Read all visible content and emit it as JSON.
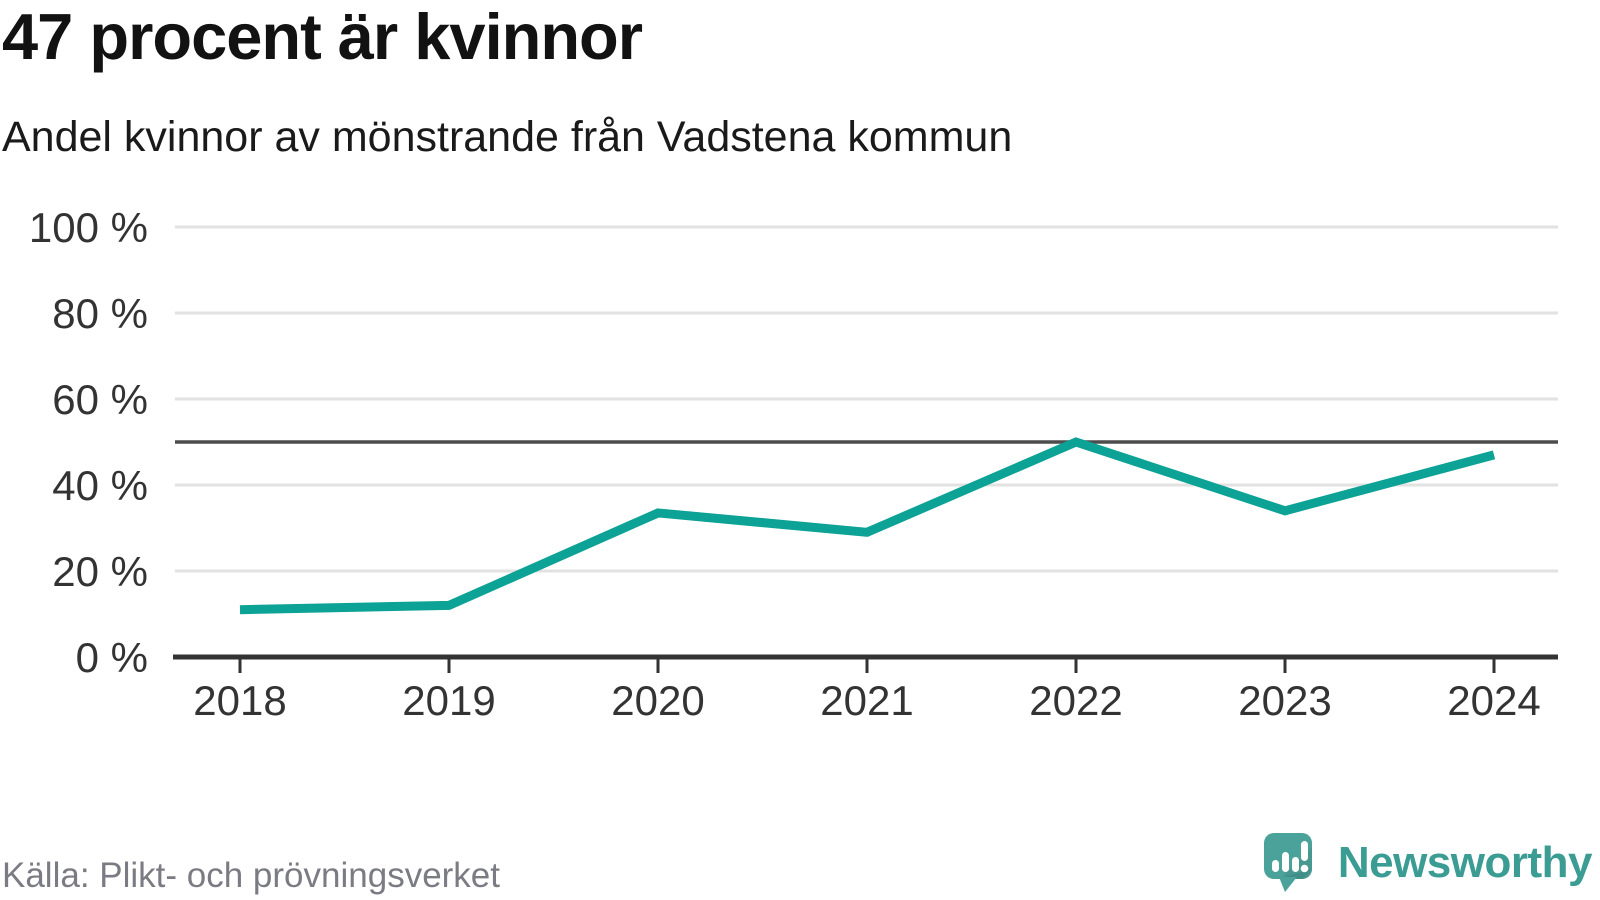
{
  "header": {
    "title": "47 procent är kvinnor",
    "subtitle": "Andel kvinnor av mönstrande från Vadstena kommun"
  },
  "footer": {
    "source": "Källa: Plikt- och prövningsverket",
    "brand": "Newsworthy",
    "logo_icon": "newsworthy-speech-bubble-with-bars-and-exclamation-icon"
  },
  "chart_data": {
    "type": "line",
    "title": "47 procent är kvinnor",
    "subtitle": "Andel kvinnor av mönstrande från Vadstena kommun",
    "categories": [
      "2018",
      "2019",
      "2020",
      "2021",
      "2022",
      "2023",
      "2024"
    ],
    "series": [
      {
        "name": "Andel kvinnor av mönstrande",
        "values": [
          11,
          12,
          33.5,
          29,
          50,
          34,
          47
        ]
      }
    ],
    "unit": "%",
    "ylim": [
      0,
      100
    ],
    "yticks": [
      0,
      20,
      40,
      60,
      80,
      100
    ],
    "ytick_format": "{v} %",
    "reference_line": 50,
    "grid": true,
    "legend": "none",
    "colors": {
      "line": "#0ca296",
      "reference_line": "#4d4d4d",
      "axis": "#333333",
      "grid": "#e2e2e2",
      "tick_label": "#333333",
      "title": "#121212",
      "source_text": "#7b7b83",
      "brand_teal": "#3b9c94",
      "logo_fill": "#4ba29b"
    }
  }
}
